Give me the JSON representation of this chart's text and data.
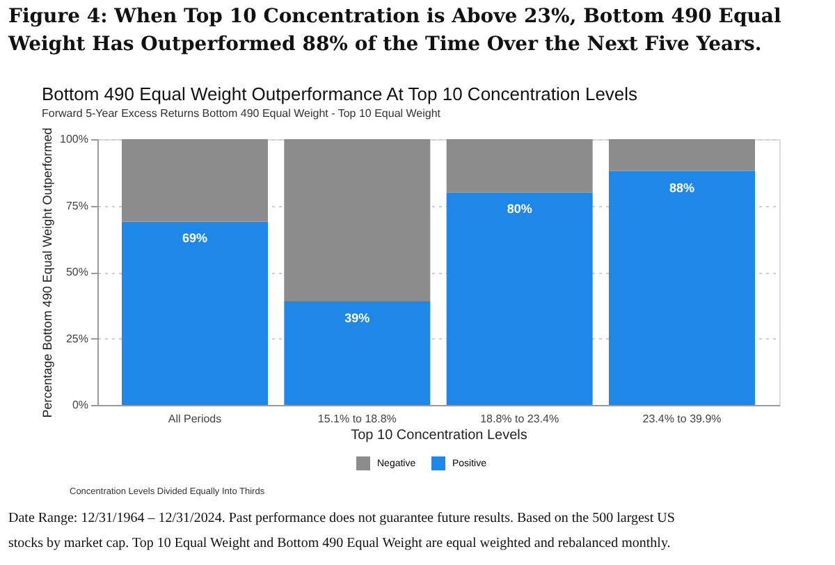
{
  "chart_data": {
    "type": "bar",
    "title": "Figure 4: When Top 10 Concentration is Above 23%, Bottom 490 Equal Weight Has Outperformed 88% of the Time Over the Next Five Years.",
    "subtitle": "Bottom 490 Equal Weight Outperformance At Top 10 Concentration Levels",
    "xlabel": "Top 10 Concentration Levels",
    "ylabel": "Percentage Bottom 490 Equal Weight Outperformed",
    "annotations": [
      "Forward 5-Year Excess Returns Bottom 490 Equal Weight - Top 10 Equal Weight",
      "Concentration Levels Divided Equally Into Thirds",
      "Date Range: 12/31/1964 – 12/31/2024. Past performance does not guarantee future results. Based on the 500 largest US stocks by market cap. Top 10 Equal Weight and Bottom 490 Equal Weight are equal weighted and rebalanced monthly."
    ],
    "categories": [
      "All Periods",
      "15.1% to 18.8%",
      "18.8% to 23.4%",
      "23.4% to 39.9%"
    ],
    "stacked": true,
    "series": [
      {
        "name": "Positive",
        "color": "#1f87e8",
        "values": [
          69,
          39,
          80,
          88
        ],
        "value_labels": [
          "69%",
          "39%",
          "80%",
          "88%"
        ]
      },
      {
        "name": "Negative",
        "color": "#8c8c8c",
        "values": [
          31,
          61,
          20,
          12
        ]
      }
    ],
    "ylim": [
      0,
      100
    ],
    "yticks": [
      {
        "value": 0,
        "label": "0%"
      },
      {
        "value": 25,
        "label": "25%"
      },
      {
        "value": 50,
        "label": "50%"
      },
      {
        "value": 75,
        "label": "75%"
      },
      {
        "value": 100,
        "label": "100%"
      }
    ],
    "grid": "y",
    "legend": "bottom"
  }
}
